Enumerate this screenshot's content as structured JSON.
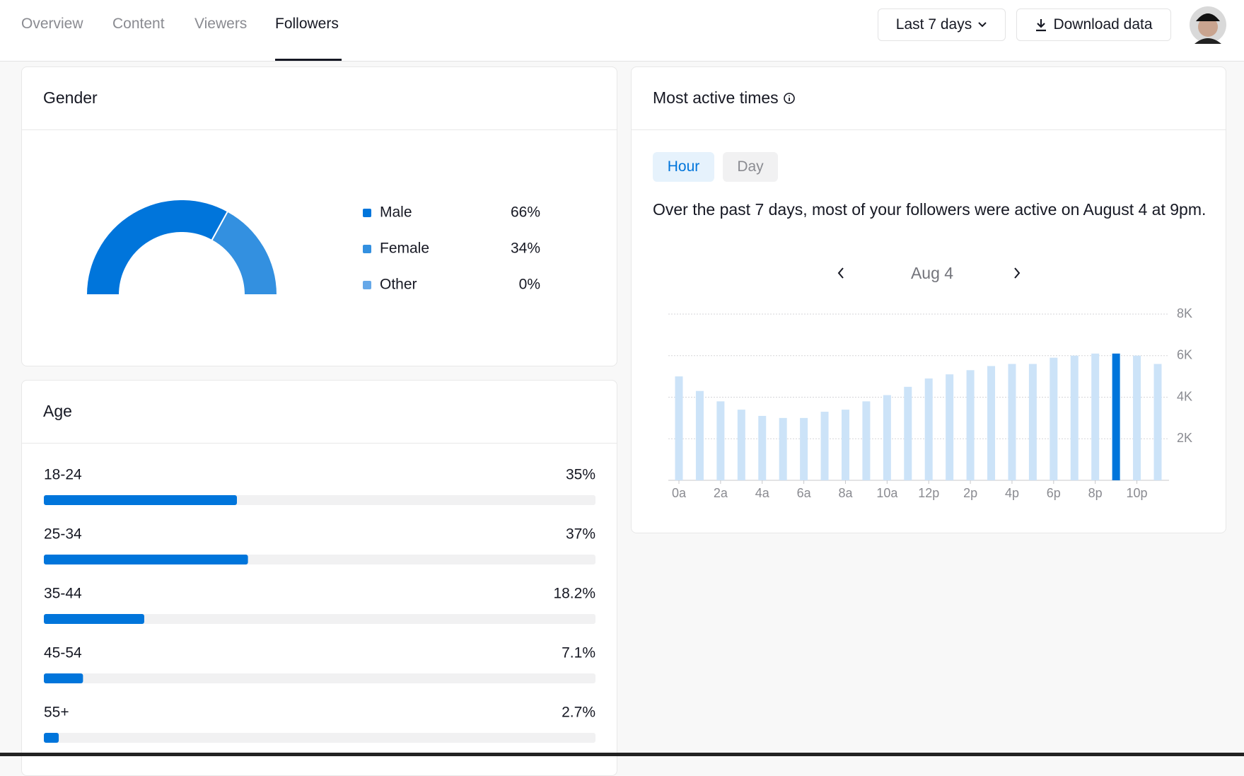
{
  "nav": {
    "tabs": [
      "Overview",
      "Content",
      "Viewers",
      "Followers"
    ],
    "active_tab": 3
  },
  "toolbar": {
    "range": "Last 7 days",
    "download": "Download data"
  },
  "gender": {
    "type": "donut",
    "title": "Gender",
    "categories": [
      "Male",
      "Female",
      "Other"
    ],
    "values": [
      66,
      34,
      0
    ],
    "value_labels": [
      "66%",
      "34%",
      "0%"
    ],
    "colors": [
      "#0075db",
      "#3390e0",
      "#66a8e8"
    ]
  },
  "age": {
    "type": "progress",
    "title": "Age",
    "categories": [
      "18-24",
      "25-34",
      "35-44",
      "45-54",
      "55+"
    ],
    "values": [
      35,
      37,
      18.2,
      7.1,
      2.7
    ],
    "value_labels": [
      "35%",
      "37%",
      "18.2%",
      "7.1%",
      "2.7%"
    ],
    "xlim": [
      0,
      100
    ],
    "color": "#0075db"
  },
  "active_times": {
    "type": "bar",
    "title": "Most active times",
    "toggles": [
      "Hour",
      "Day"
    ],
    "active_toggle": 0,
    "description": "Over the past 7 days, most of your followers were active on August 4 at 9pm.",
    "date": "Aug 4",
    "categories": [
      "0a",
      null,
      "2a",
      null,
      "4a",
      null,
      "6a",
      null,
      "8a",
      null,
      "10a",
      null,
      "12p",
      null,
      "2p",
      null,
      "4p",
      null,
      "6p",
      null,
      "8p",
      null,
      "10p",
      null
    ],
    "values": [
      5000,
      4300,
      3800,
      3400,
      3100,
      3000,
      3000,
      3300,
      3400,
      3800,
      4100,
      4500,
      4900,
      5100,
      5300,
      5500,
      5600,
      5600,
      5900,
      6000,
      6100,
      6100,
      6000,
      5600
    ],
    "color": "#cce3f8",
    "highlight_color": "#0075db",
    "highlight_index": 21,
    "ylim": [
      0,
      8000
    ],
    "yticks": [
      {
        "value": 2000,
        "label": "2K"
      },
      {
        "value": 4000,
        "label": "4K"
      },
      {
        "value": 6000,
        "label": "6K"
      },
      {
        "value": 8000,
        "label": "8K"
      }
    ],
    "grid": true
  }
}
